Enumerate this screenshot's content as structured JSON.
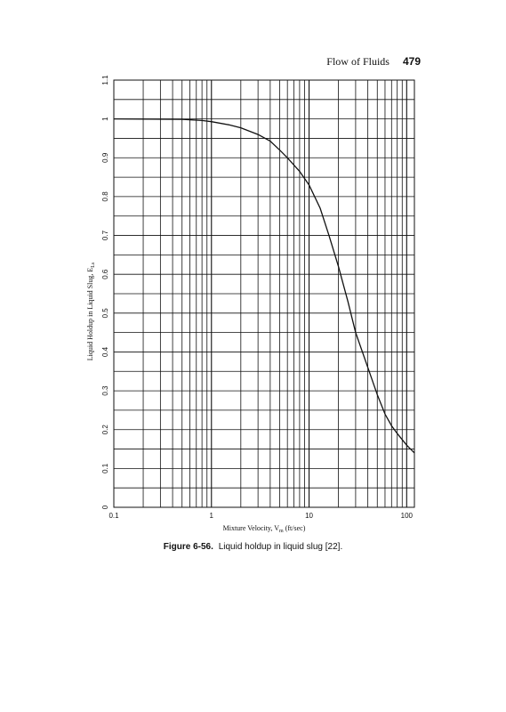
{
  "header": {
    "running_title": "Flow of Fluids",
    "page_number": "479"
  },
  "caption": {
    "label": "Figure 6-56.",
    "text": "Liquid holdup in liquid slug [22]."
  },
  "chart_data": {
    "type": "line",
    "xlabel": {
      "main": "Mixture Velocity, V",
      "sub": "m",
      "unit": " (ft/sec)"
    },
    "ylabel": {
      "main": "Liquid Holdup in Liquid Slug, E",
      "sub": "Ls"
    },
    "xscale": "log",
    "xlim": [
      0.1,
      120
    ],
    "ylim": [
      0,
      1.1
    ],
    "x_ticks": [
      {
        "value": 0.1,
        "label": "0.1"
      },
      {
        "value": 1,
        "label": "1"
      },
      {
        "value": 10,
        "label": "10"
      },
      {
        "value": 100,
        "label": "100"
      }
    ],
    "y_ticks": [
      {
        "value": 0,
        "label": "0"
      },
      {
        "value": 0.1,
        "label": "0.1"
      },
      {
        "value": 0.2,
        "label": "0.2"
      },
      {
        "value": 0.3,
        "label": "0.3"
      },
      {
        "value": 0.4,
        "label": "0.4"
      },
      {
        "value": 0.5,
        "label": "0.5"
      },
      {
        "value": 0.6,
        "label": "0.6"
      },
      {
        "value": 0.7,
        "label": "0.7"
      },
      {
        "value": 0.8,
        "label": "0.8"
      },
      {
        "value": 0.9,
        "label": "0.9"
      },
      {
        "value": 1,
        "label": "1"
      },
      {
        "value": 1.1,
        "label": "1.1"
      }
    ],
    "grid": true,
    "y_minor_step": 0.05,
    "series": [
      {
        "x": [
          0.1,
          0.5,
          0.8,
          1,
          1.5,
          2,
          3,
          4,
          5,
          6,
          8,
          10,
          13,
          16,
          20,
          25,
          30,
          40,
          50,
          60,
          70,
          80,
          100,
          120
        ],
        "y": [
          1.0,
          0.999,
          0.996,
          0.993,
          0.985,
          0.977,
          0.96,
          0.943,
          0.92,
          0.9,
          0.865,
          0.83,
          0.77,
          0.7,
          0.62,
          0.53,
          0.45,
          0.36,
          0.29,
          0.24,
          0.21,
          0.19,
          0.16,
          0.14
        ]
      }
    ]
  },
  "colors": {
    "ink": "#111111",
    "background": "#ffffff"
  }
}
